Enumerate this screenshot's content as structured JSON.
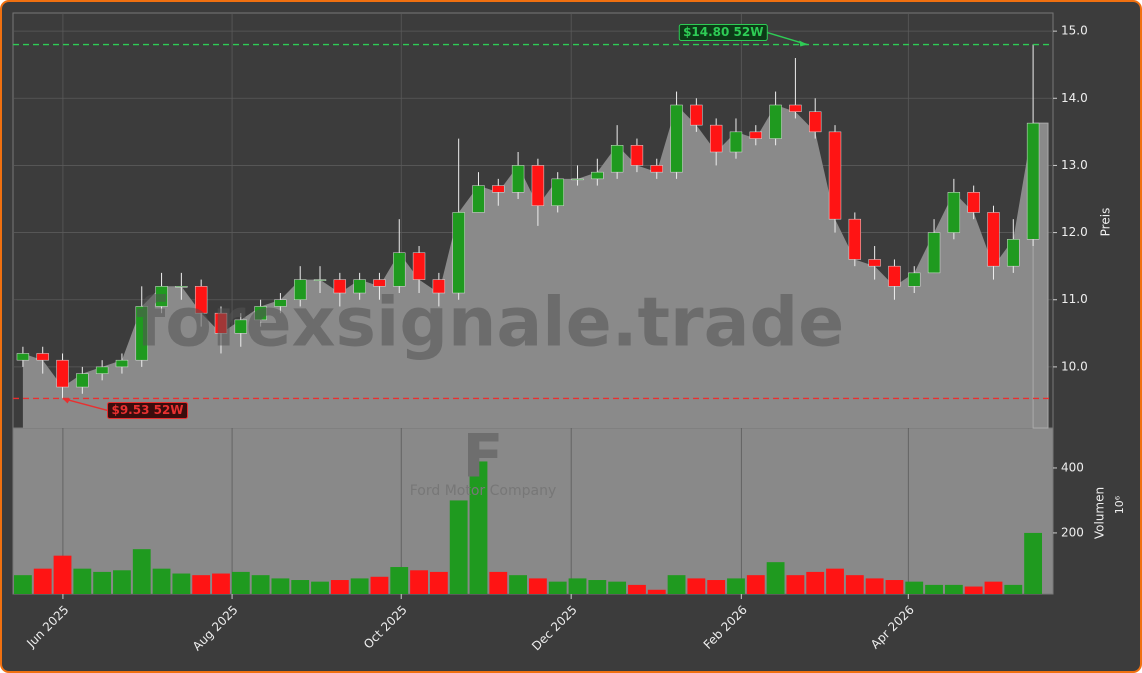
{
  "chart_data": {
    "type": "candlestick",
    "watermark": "forexsignale.trade",
    "logo_letter": "F",
    "company": "Ford Motor Company",
    "ylabel": "Preis",
    "y2label": "Volumen",
    "y2unit": "10⁶",
    "categories": [
      null,
      null,
      null,
      null,
      null,
      null,
      null,
      null,
      null,
      null,
      null,
      null,
      null,
      null,
      null,
      null,
      null,
      null,
      null,
      null,
      null,
      null,
      null,
      null,
      null,
      null,
      null,
      null,
      null,
      null,
      null,
      null,
      null,
      null,
      null,
      null,
      null,
      null,
      null,
      null,
      null,
      null,
      null,
      null,
      null,
      null,
      null,
      null,
      null,
      null,
      null,
      null
    ],
    "open": [
      10.1,
      10.2,
      10.1,
      9.7,
      9.9,
      10.0,
      10.1,
      10.9,
      11.2,
      11.2,
      10.8,
      10.5,
      10.7,
      10.9,
      11.0,
      11.3,
      11.3,
      11.1,
      11.3,
      11.2,
      11.7,
      11.3,
      11.1,
      12.3,
      12.7,
      12.6,
      13.0,
      12.4,
      12.8,
      12.8,
      12.9,
      13.3,
      13.0,
      12.9,
      13.9,
      13.6,
      13.2,
      13.5,
      13.4,
      13.9,
      13.8,
      13.5,
      12.2,
      11.6,
      11.5,
      11.2,
      11.4,
      12.0,
      12.6,
      12.3,
      11.5,
      11.9
    ],
    "high": [
      10.3,
      10.3,
      10.2,
      10.0,
      10.1,
      10.2,
      11.2,
      11.4,
      11.4,
      11.3,
      10.9,
      10.8,
      11.0,
      11.1,
      11.5,
      11.5,
      11.4,
      11.4,
      11.4,
      12.2,
      11.8,
      11.4,
      13.4,
      12.9,
      12.8,
      13.2,
      13.1,
      12.9,
      13.0,
      13.1,
      13.6,
      13.4,
      13.1,
      14.1,
      14.0,
      13.7,
      13.7,
      13.6,
      14.1,
      14.6,
      14.0,
      13.6,
      12.3,
      11.8,
      11.6,
      11.5,
      12.2,
      12.8,
      12.7,
      12.4,
      12.2,
      14.8
    ],
    "low": [
      10.0,
      9.9,
      9.53,
      9.6,
      9.8,
      9.9,
      10.0,
      10.8,
      11.0,
      10.6,
      10.2,
      10.3,
      10.6,
      10.8,
      10.9,
      11.1,
      10.9,
      11.0,
      11.0,
      11.1,
      11.1,
      10.9,
      11.0,
      12.3,
      12.4,
      12.5,
      12.1,
      12.3,
      12.7,
      12.7,
      12.8,
      12.9,
      12.8,
      12.8,
      13.5,
      13.0,
      13.1,
      13.3,
      13.3,
      13.7,
      13.4,
      12.0,
      11.5,
      11.3,
      11.0,
      11.1,
      11.4,
      11.9,
      12.2,
      11.3,
      11.4,
      11.8
    ],
    "close": [
      10.2,
      10.1,
      9.7,
      9.9,
      10.0,
      10.1,
      10.9,
      11.2,
      11.2,
      10.8,
      10.5,
      10.7,
      10.9,
      11.0,
      11.3,
      11.3,
      11.1,
      11.3,
      11.2,
      11.7,
      11.3,
      11.1,
      12.3,
      12.7,
      12.6,
      13.0,
      12.4,
      12.8,
      12.8,
      12.9,
      13.3,
      13.0,
      12.9,
      13.9,
      13.6,
      13.2,
      13.5,
      13.4,
      13.9,
      13.8,
      13.5,
      12.2,
      11.6,
      11.5,
      11.2,
      11.4,
      12.0,
      12.6,
      12.3,
      11.5,
      11.9,
      13.63
    ],
    "volume": [
      70,
      90,
      130,
      90,
      80,
      85,
      150,
      90,
      75,
      70,
      75,
      80,
      70,
      60,
      55,
      50,
      55,
      60,
      65,
      95,
      85,
      80,
      300,
      420,
      80,
      70,
      60,
      50,
      60,
      55,
      50,
      40,
      25,
      70,
      60,
      55,
      60,
      70,
      110,
      70,
      80,
      90,
      70,
      60,
      55,
      50,
      40,
      40,
      35,
      50,
      40,
      200
    ],
    "up_color": "#1f9a1f",
    "down_color": "#ff1414",
    "last_price": 13.63,
    "ylim": [
      9.09,
      15.27
    ],
    "yticks": [
      {
        "value": 10,
        "label": "10.0"
      },
      {
        "value": 11,
        "label": "11.0"
      },
      {
        "value": 12,
        "label": "12.0"
      },
      {
        "value": 13,
        "label": "13.0"
      },
      {
        "value": 14,
        "label": "14.0"
      },
      {
        "value": 15,
        "label": "15.0"
      }
    ],
    "y2lim": [
      12,
      523
    ],
    "y2ticks": [
      200,
      400
    ],
    "xlim": [
      -0.5,
      51.5
    ],
    "xticks": [
      {
        "value": 2.02,
        "label": "Jun 2025"
      },
      {
        "value": 10.56,
        "label": "Aug 2025"
      },
      {
        "value": 19.1,
        "label": "Oct 2025"
      },
      {
        "value": 27.68,
        "label": "Dec 2025"
      },
      {
        "value": 36.27,
        "label": "Feb 2026"
      },
      {
        "value": 44.7,
        "label": "Apr 2026"
      }
    ],
    "grid": true,
    "annotations": [
      {
        "text": "$14.80 52W",
        "value": 14.8,
        "x": 39.6,
        "color": "#2ecc55"
      },
      {
        "text": "$9.53 52W",
        "value": 9.53,
        "x": 2.0,
        "color": "#e83030"
      }
    ]
  }
}
